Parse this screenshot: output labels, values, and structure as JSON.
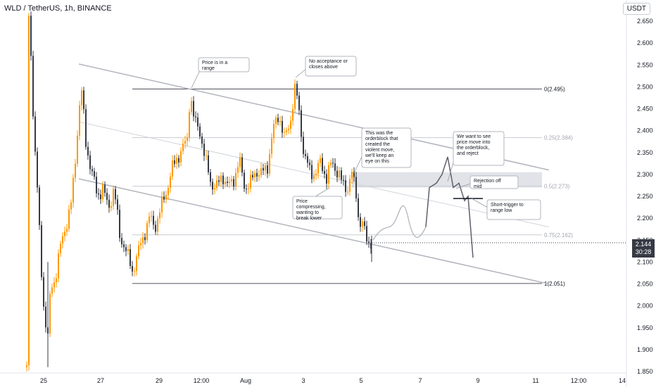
{
  "header": {
    "symbol_line": "WLD / TetherUS, 1h, BINANCE",
    "unit": "USDT"
  },
  "last_price": {
    "value": "2.144",
    "countdown": "30:28"
  },
  "chart_data": {
    "type": "candlestick",
    "y_axis": {
      "ticks": [
        "2.650",
        "2.600",
        "2.550",
        "2.500",
        "2.450",
        "2.400",
        "2.350",
        "2.300",
        "2.250",
        "2.200",
        "2.150",
        "2.100",
        "2.050",
        "2.000",
        "1.950",
        "1.900",
        "1.850"
      ],
      "range": [
        1.85,
        2.68
      ]
    },
    "x_axis": {
      "ticks": [
        "25",
        "27",
        "29",
        "12:00",
        "Aug",
        "3",
        "5",
        "7",
        "9",
        "11",
        "12:00",
        "14"
      ]
    },
    "fib_levels": [
      {
        "label": "0(2.495)",
        "value": 2.495
      },
      {
        "label": "0.25(2.384)",
        "value": 2.384
      },
      {
        "label": "0.5(2.273)",
        "value": 2.273
      },
      {
        "label": "0.75(2.162)",
        "value": 2.162
      },
      {
        "label": "1(2.051)",
        "value": 2.051
      }
    ],
    "orderblock_zone": [
      2.27,
      2.305
    ],
    "candles_key_points": [
      {
        "x": "24",
        "price": 1.86
      },
      {
        "x": "25",
        "price": 2.65
      },
      {
        "x": "25",
        "price": 1.98
      },
      {
        "x": "26",
        "price": 2.28
      },
      {
        "x": "26",
        "price": 2.49
      },
      {
        "x": "27",
        "price": 2.25
      },
      {
        "x": "28",
        "price": 2.08
      },
      {
        "x": "29",
        "price": 2.22
      },
      {
        "x": "29",
        "price": 2.3
      },
      {
        "x": "30",
        "price": 2.49
      },
      {
        "x": "30",
        "price": 2.31
      },
      {
        "x": "31",
        "price": 2.27
      },
      {
        "x": "Aug",
        "price": 2.32
      },
      {
        "x": "2",
        "price": 2.45
      },
      {
        "x": "3",
        "price": 2.5
      },
      {
        "x": "3",
        "price": 2.34
      },
      {
        "x": "4",
        "price": 2.29
      },
      {
        "x": "4",
        "price": 2.3
      },
      {
        "x": "5",
        "price": 2.19
      },
      {
        "x": "5",
        "price": 2.144
      }
    ],
    "annotations": [
      {
        "text": "Price is in a range"
      },
      {
        "text": "No acceptance or closes above"
      },
      {
        "text": "This was the orderblock that created the violent move, we'll keep an eye on this"
      },
      {
        "text": "Price compressing, wanting to break lower"
      },
      {
        "text": "We want to see price move into the orderblock, and reject"
      },
      {
        "text": "Rejection off mid"
      },
      {
        "text": "Short-trigger to range low"
      }
    ]
  },
  "colors": {
    "up": "#ff9800",
    "down": "#363a45",
    "channel": "#b2b5be",
    "fib": "#787b86",
    "zone": "#d1d4dc",
    "projection": "#5d606b"
  }
}
